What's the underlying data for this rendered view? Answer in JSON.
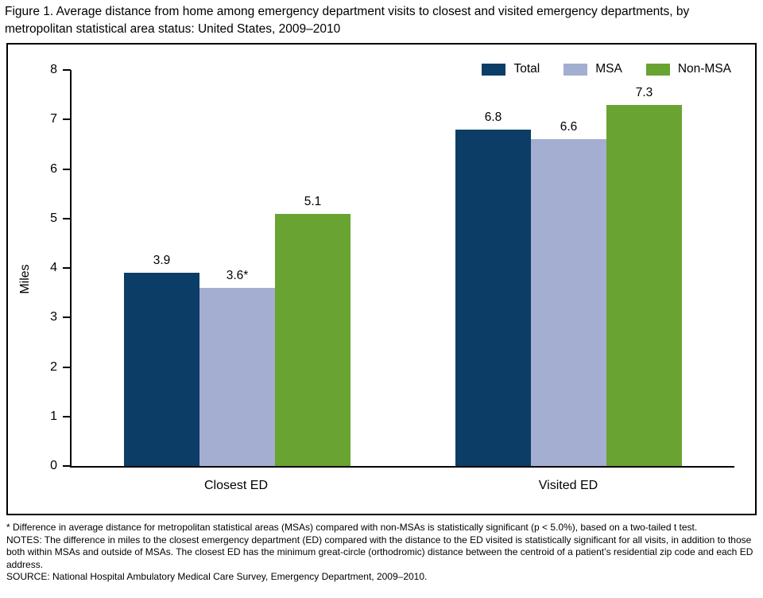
{
  "title": "Figure 1. Average distance from home among emergency department visits to closest and visited emergency departments, by metropolitan statistical area status: United States, 2009–2010",
  "chart_data": {
    "type": "bar",
    "categories": [
      "Closest ED",
      "Visited ED"
    ],
    "series": [
      {
        "name": "Total",
        "color": "#0b3d66",
        "values": [
          3.9,
          6.8
        ],
        "labels": [
          "3.9",
          "6.8"
        ]
      },
      {
        "name": "MSA",
        "color": "#a3aed0",
        "values": [
          3.6,
          6.6
        ],
        "labels": [
          "3.6*",
          "6.6"
        ]
      },
      {
        "name": "Non-MSA",
        "color": "#69a331",
        "values": [
          5.1,
          7.3
        ],
        "labels": [
          "5.1",
          "7.3"
        ]
      }
    ],
    "title": "",
    "xlabel": "",
    "ylabel": "Miles",
    "ylim": [
      0,
      8
    ],
    "yticks": [
      0,
      1,
      2,
      3,
      4,
      5,
      6,
      7,
      8
    ],
    "grid": false,
    "legend_position": "top-right"
  },
  "footnotes": [
    "* Difference in average distance for metropolitan statistical areas (MSAs) compared with non-MSAs is statistically significant (p < 5.0%), based on a two-tailed t test.",
    "NOTES: The difference in miles to the closest emergency department (ED) compared with the distance to the ED visited is statistically significant for all visits, in addition to those both within MSAs and outside of MSAs. The closest ED has the minimum great-circle (orthodromic) distance between the centroid of a patient’s residential zip code and each ED address.",
    "SOURCE: National Hospital Ambulatory Medical Care Survey, Emergency Department, 2009–2010."
  ]
}
